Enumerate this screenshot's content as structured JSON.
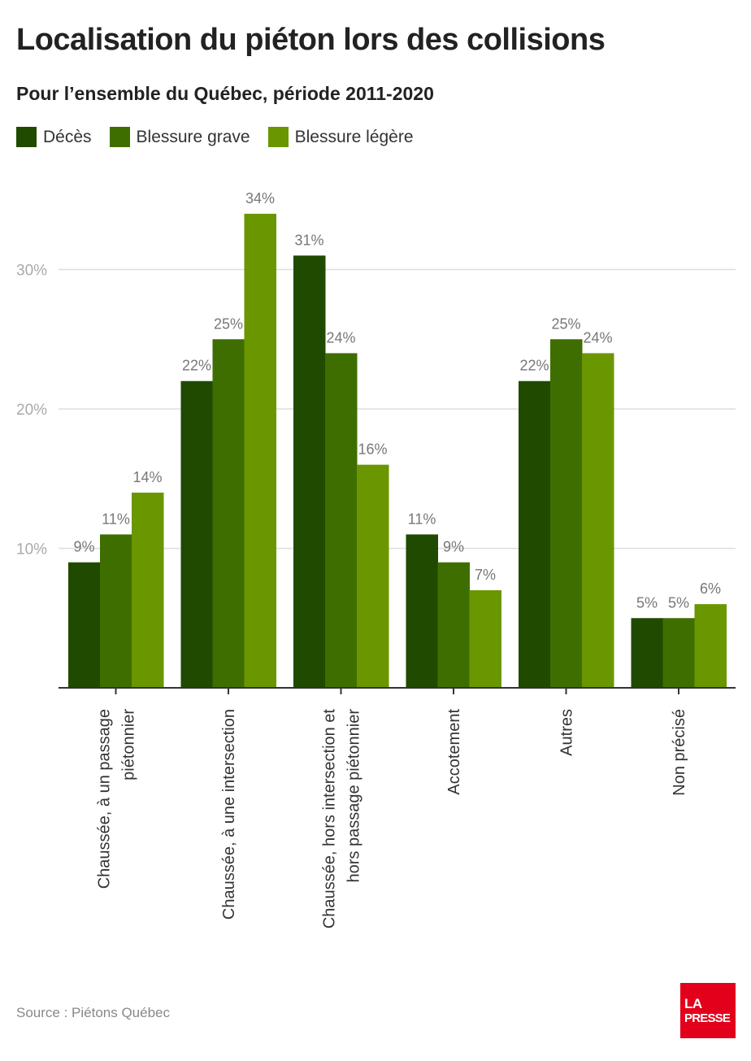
{
  "header": {
    "title": "Localisation du piéton lors des collisions",
    "subtitle": "Pour l’ensemble du Québec, période 2011-2020"
  },
  "legend": {
    "items": [
      {
        "label": "Décès",
        "color": "#1f4a00"
      },
      {
        "label": "Blessure grave",
        "color": "#3f6e00"
      },
      {
        "label": "Blessure légère",
        "color": "#6a9600"
      }
    ]
  },
  "chart_data": {
    "type": "bar",
    "categories": [
      [
        "Chaussée, à un passage",
        "piétonnier"
      ],
      [
        "Chaussée, à une intersection"
      ],
      [
        "Chaussée, hors intersection et",
        "hors passage piétonnier"
      ],
      [
        "Accotement"
      ],
      [
        "Autres"
      ],
      [
        "Non précisé"
      ]
    ],
    "series": [
      {
        "name": "Décès",
        "values": [
          9,
          22,
          31,
          11,
          22,
          5
        ],
        "color": "#1f4a00"
      },
      {
        "name": "Blessure grave",
        "values": [
          11,
          25,
          24,
          9,
          25,
          5
        ],
        "color": "#3f6e00"
      },
      {
        "name": "Blessure légère",
        "values": [
          14,
          34,
          16,
          7,
          24,
          6
        ],
        "color": "#6a9600"
      }
    ],
    "value_suffix": "%",
    "yticks": [
      10,
      20,
      30
    ],
    "ytick_labels": [
      "10%",
      "20%",
      "30%"
    ],
    "ylim": [
      0,
      36
    ],
    "grid": true,
    "legend_position": "top-left"
  },
  "footer": {
    "source": "Source : Piétons Québec"
  },
  "logo": {
    "line1": "LA",
    "line2": "PRESSE",
    "color": "#e2001a"
  }
}
